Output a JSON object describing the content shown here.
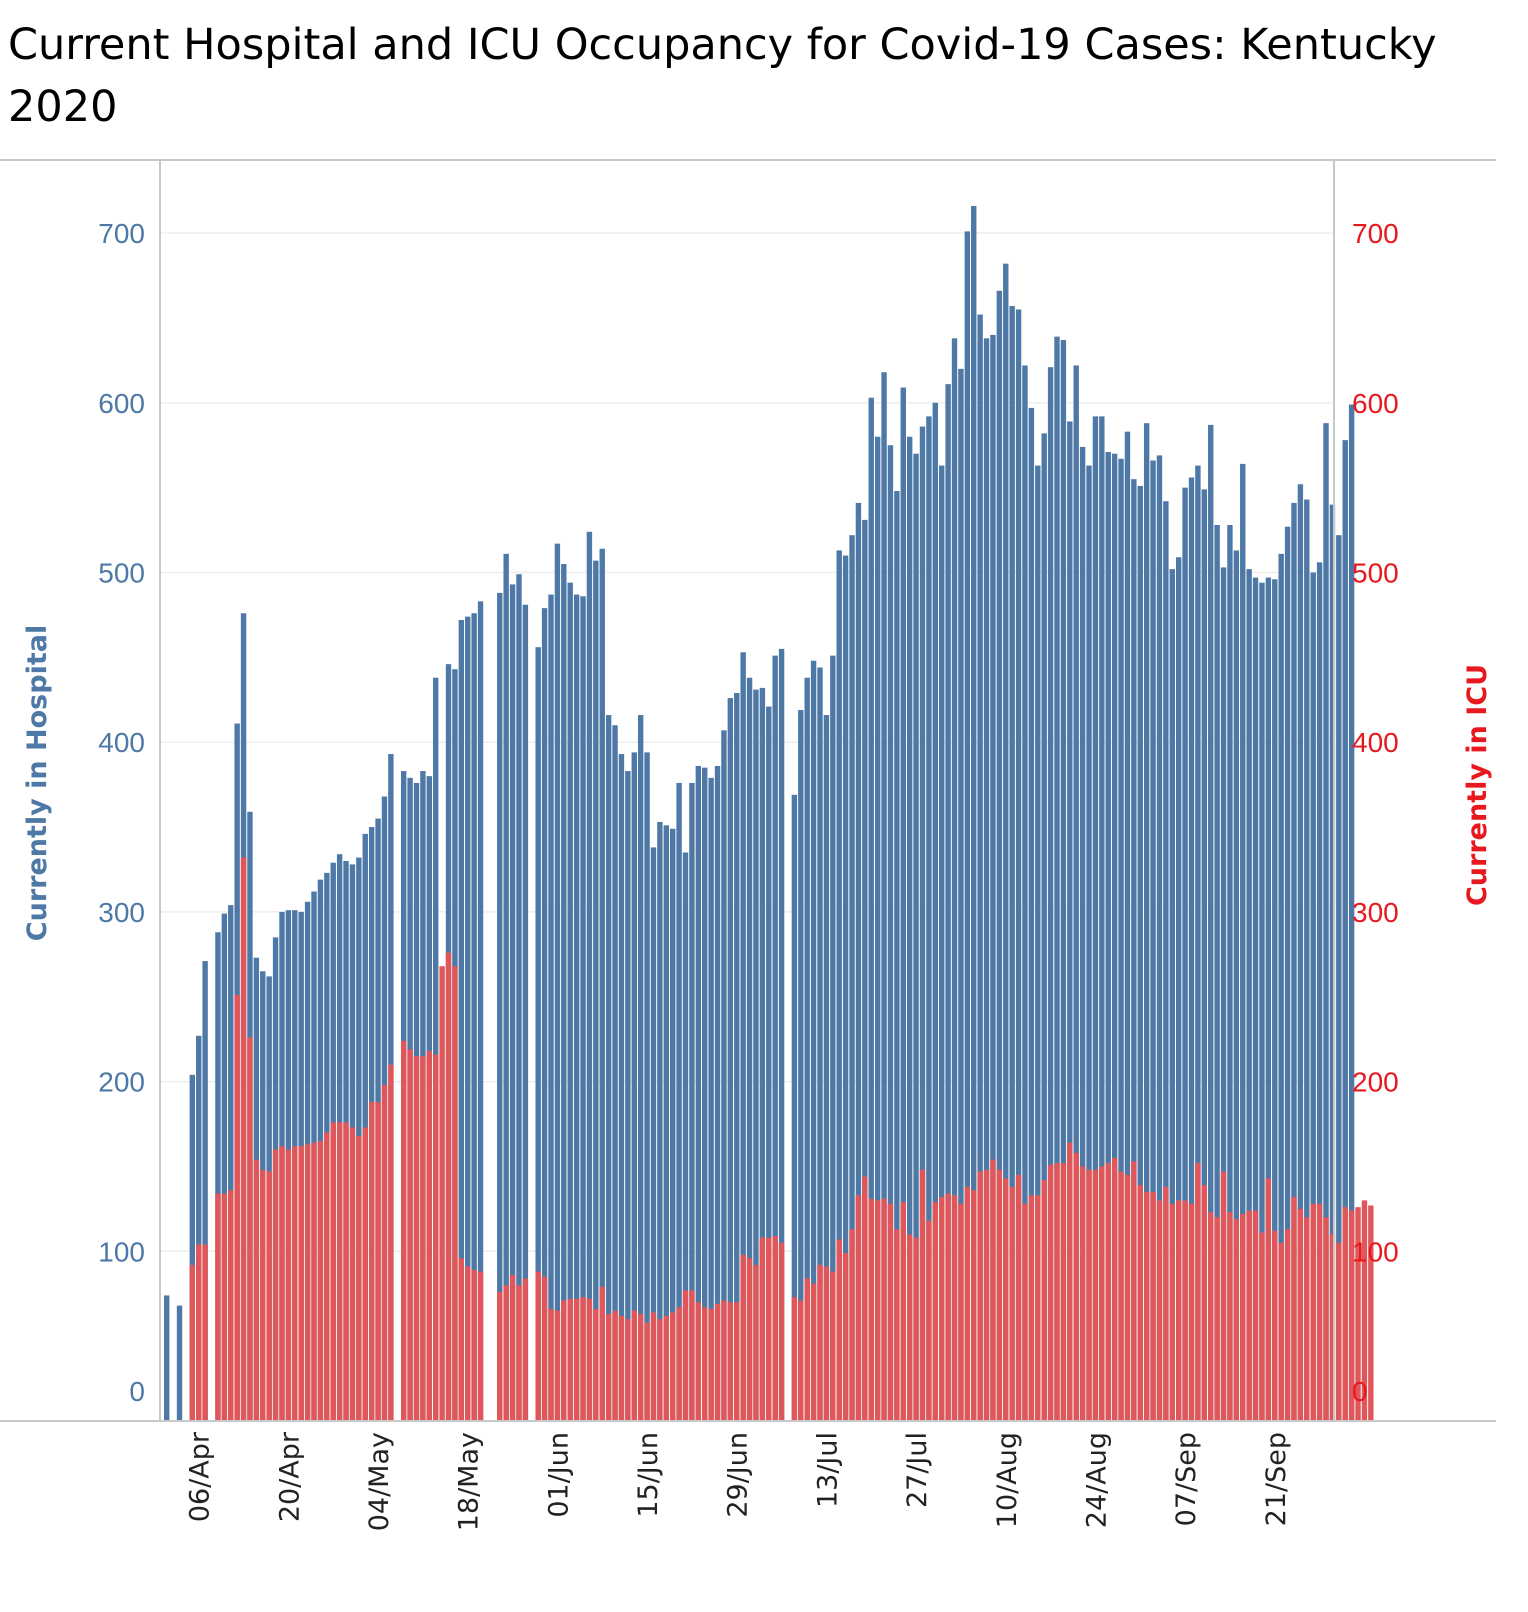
{
  "colors": {
    "hospital": "#4e79a7",
    "icu": "#e15759",
    "left_axis_text": "#4e79a7",
    "right_axis_text": "#e8191e",
    "gridline": "#eeeeee",
    "axis_line": "#c8c8c8"
  },
  "chart_data": {
    "type": "bar",
    "title": "Current Hospital and ICU Occupancy for Covid-19 Cases:  Kentucky 2020",
    "grid": true,
    "x_start_date": "2020-04-01",
    "x_end_date": "2020-09-30",
    "x_tick_labels": [
      "06/Apr",
      "20/Apr",
      "04/May",
      "18/May",
      "01/Jun",
      "15/Jun",
      "29/Jun",
      "13/Jul",
      "27/Jul",
      "10/Aug",
      "24/Aug",
      "07/Sep",
      "21/Sep"
    ],
    "y_left": {
      "label": "Currently in Hospital",
      "range": [
        0,
        750
      ],
      "ticks": [
        0,
        100,
        200,
        300,
        400,
        500,
        600,
        700
      ]
    },
    "y_right": {
      "label": "Currently in ICU",
      "range": [
        0,
        750
      ],
      "ticks": [
        0,
        100,
        200,
        300,
        400,
        500,
        600,
        700
      ]
    },
    "series": [
      {
        "name": "Currently in Hospital",
        "axis": "left",
        "values": [
          74,
          null,
          68,
          null,
          204,
          227,
          271,
          null,
          288,
          299,
          304,
          411,
          476,
          359,
          273,
          265,
          262,
          285,
          300,
          301,
          301,
          300,
          306,
          312,
          319,
          323,
          329,
          334,
          330,
          328,
          332,
          346,
          350,
          355,
          368,
          393,
          null,
          383,
          379,
          376,
          383,
          380,
          438,
          null,
          446,
          443,
          472,
          474,
          476,
          483,
          null,
          null,
          488,
          511,
          493,
          499,
          481,
          null,
          456,
          479,
          487,
          517,
          505,
          494,
          487,
          486,
          524,
          507,
          514,
          416,
          410,
          393,
          383,
          394,
          416,
          394,
          338,
          353,
          351,
          349,
          376,
          335,
          376,
          386,
          385,
          379,
          386,
          407,
          426,
          429,
          453,
          438,
          431,
          432,
          421,
          451,
          455,
          null,
          369,
          419,
          438,
          448,
          444,
          416,
          451,
          513,
          510,
          522,
          541,
          531,
          603,
          580,
          618,
          575,
          548,
          609,
          580,
          570,
          586,
          592,
          600,
          563,
          611,
          638,
          620,
          701,
          716,
          652,
          638,
          640,
          666,
          682,
          657,
          655,
          622,
          597,
          563,
          582,
          621,
          639,
          637,
          589,
          622,
          574,
          563,
          592,
          592,
          571,
          570,
          567,
          583,
          555,
          551,
          588,
          566,
          569,
          542,
          502,
          509,
          550,
          556,
          563,
          549,
          587,
          528,
          503,
          528,
          513,
          564,
          502,
          497,
          494,
          497,
          496,
          511,
          527,
          541,
          552,
          543,
          500,
          506,
          588,
          540,
          522,
          578,
          599
        ]
      },
      {
        "name": "Currently in ICU",
        "axis": "right",
        "values": [
          null,
          null,
          null,
          null,
          92,
          104,
          104,
          null,
          134,
          134,
          136,
          251,
          332,
          226,
          154,
          148,
          147,
          160,
          162,
          160,
          162,
          162,
          163,
          164,
          165,
          170,
          176,
          176,
          176,
          173,
          168,
          173,
          188,
          188,
          198,
          210,
          null,
          224,
          219,
          215,
          215,
          218,
          216,
          268,
          276,
          268,
          96,
          91,
          89,
          88,
          null,
          null,
          76,
          80,
          86,
          80,
          84,
          null,
          88,
          85,
          66,
          65,
          71,
          72,
          72,
          73,
          72,
          66,
          79,
          63,
          65,
          62,
          60,
          65,
          63,
          58,
          64,
          60,
          62,
          64,
          67,
          77,
          77,
          70,
          67,
          66,
          69,
          71,
          70,
          70,
          98,
          96,
          92,
          108,
          108,
          109,
          105,
          null,
          73,
          71,
          84,
          81,
          92,
          91,
          88,
          107,
          99,
          113,
          133,
          144,
          131,
          130,
          131,
          128,
          113,
          129,
          110,
          108,
          148,
          118,
          129,
          132,
          134,
          133,
          128,
          138,
          136,
          147,
          148,
          154,
          148,
          143,
          138,
          145,
          128,
          133,
          133,
          142,
          151,
          152,
          152,
          164,
          158,
          150,
          148,
          148,
          150,
          152,
          155,
          147,
          145,
          153,
          139,
          135,
          135,
          130,
          138,
          128,
          130,
          130,
          128,
          152,
          139,
          123,
          120,
          147,
          123,
          119,
          122,
          124,
          124,
          111,
          143,
          112,
          105,
          113,
          132,
          125,
          120,
          128,
          128,
          120,
          110,
          105,
          126,
          124,
          126,
          130,
          127
        ]
      }
    ]
  }
}
